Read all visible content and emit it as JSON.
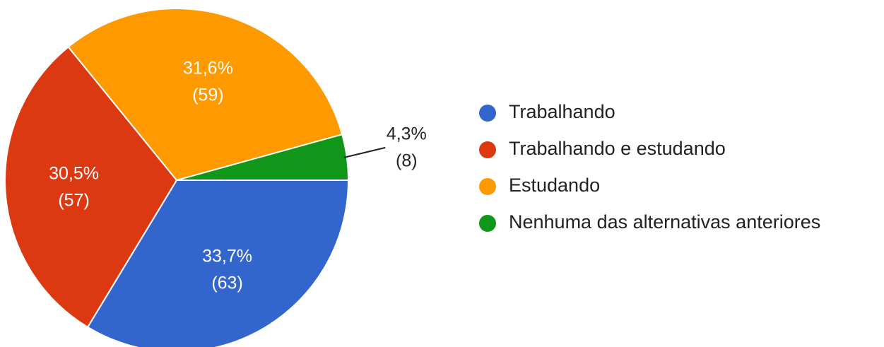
{
  "chart_data": {
    "type": "pie",
    "categories": [
      "Trabalhando",
      "Trabalhando e estudando",
      "Estudando",
      "Nenhuma das alternativas anteriores"
    ],
    "values": [
      33.7,
      30.5,
      31.6,
      4.3
    ],
    "value_labels": [
      "33,7%",
      "30,5%",
      "31,6%",
      "4,3%"
    ],
    "count_labels": [
      "(63)",
      "(57)",
      "(59)",
      "(8)"
    ],
    "colors": [
      "#3366cc",
      "#dc3912",
      "#ff9900",
      "#109618"
    ],
    "legend": "right"
  }
}
